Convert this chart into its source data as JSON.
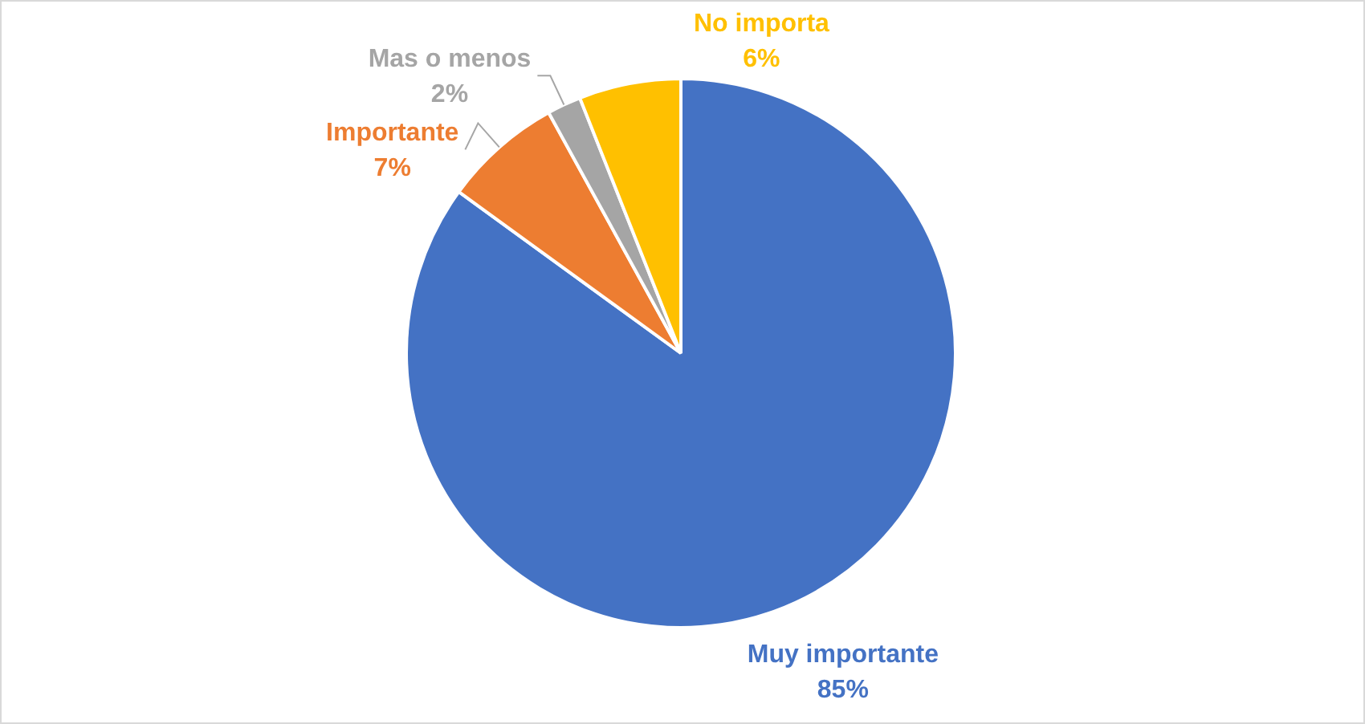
{
  "chart_data": {
    "type": "pie",
    "categories": [
      "Muy importante",
      "Importante",
      "Mas o menos",
      "No importa"
    ],
    "values": [
      85,
      7,
      2,
      6
    ],
    "colors": [
      "#4472c4",
      "#ed7d31",
      "#a5a5a5",
      "#ffc000"
    ],
    "value_labels": [
      "85%",
      "7%",
      "2%",
      "6%"
    ],
    "legend": false
  }
}
